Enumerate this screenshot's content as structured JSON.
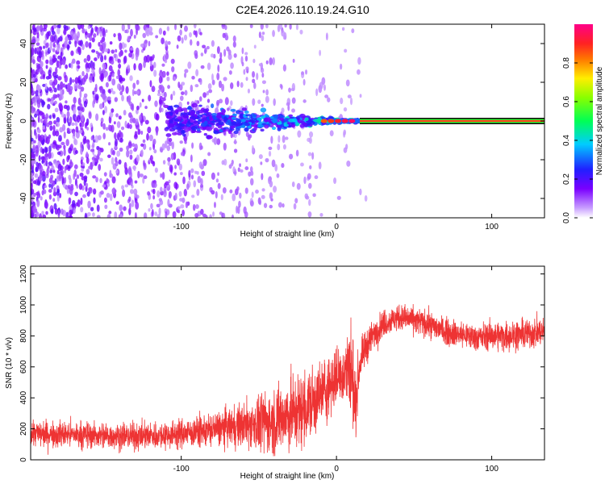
{
  "chart_data": [
    {
      "type": "heatmap",
      "title": "C2E4.2026.110.19.24.G10",
      "xlabel": "Height of straight line (km)",
      "ylabel": "Frequency (Hz)",
      "xlim": [
        -197,
        134
      ],
      "ylim": [
        -50,
        50
      ],
      "xticks": [
        -100,
        0,
        100
      ],
      "yticks": [
        -40,
        -20,
        0,
        20,
        40
      ],
      "grid": false,
      "colorbar": {
        "label": "Normalized spectral amplitude",
        "range": [
          0,
          1
        ],
        "ticks": [
          0.0,
          0.2,
          0.4,
          0.6,
          0.8
        ],
        "colormap": "rainbow (white-purple-blue-cyan-green-yellow-red-magenta)"
      },
      "features": {
        "carrier_line_frequency_hz": 0,
        "scintillation_region_km": [
          -197,
          15
        ],
        "clean_carrier_region_km": [
          15,
          134
        ]
      }
    },
    {
      "type": "line",
      "xlabel": "Height of straight line (km)",
      "ylabel": "SNR (10 * v/v)",
      "xlim": [
        -197,
        134
      ],
      "ylim": [
        0,
        1250
      ],
      "xticks": [
        -100,
        0,
        100
      ],
      "yticks": [
        0,
        200,
        400,
        600,
        800,
        1000,
        1200
      ],
      "grid": false,
      "color": "#ee3333",
      "series": [
        {
          "name": "SNR",
          "x": [
            -197,
            -160,
            -130,
            -110,
            -90,
            -70,
            -55,
            -40,
            -30,
            -20,
            -10,
            0,
            5,
            8,
            10,
            12,
            15,
            20,
            25,
            30,
            40,
            50,
            60,
            70,
            80,
            90,
            100,
            110,
            120,
            134
          ],
          "mean": [
            170,
            160,
            150,
            160,
            180,
            210,
            230,
            250,
            290,
            330,
            420,
            530,
            570,
            600,
            560,
            330,
            620,
            750,
            820,
            880,
            920,
            900,
            870,
            830,
            810,
            790,
            800,
            800,
            810,
            830
          ],
          "noise": [
            80,
            80,
            80,
            80,
            90,
            110,
            150,
            200,
            230,
            230,
            200,
            180,
            180,
            250,
            420,
            180,
            120,
            100,
            90,
            80,
            80,
            80,
            80,
            80,
            80,
            80,
            85,
            90,
            90,
            90
          ]
        }
      ]
    }
  ]
}
